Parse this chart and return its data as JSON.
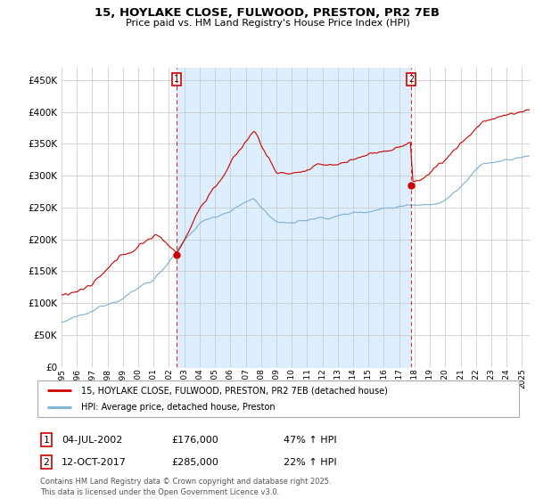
{
  "title_line1": "15, HOYLAKE CLOSE, FULWOOD, PRESTON, PR2 7EB",
  "title_line2": "Price paid vs. HM Land Registry's House Price Index (HPI)",
  "ylim": [
    0,
    470000
  ],
  "yticks": [
    0,
    50000,
    100000,
    150000,
    200000,
    250000,
    300000,
    350000,
    400000,
    450000
  ],
  "ytick_labels": [
    "£0",
    "£50K",
    "£100K",
    "£150K",
    "£200K",
    "£250K",
    "£300K",
    "£350K",
    "£400K",
    "£450K"
  ],
  "xlim_start": 1995.0,
  "xlim_end": 2025.5,
  "property_color": "#cc0000",
  "hpi_color": "#7ab0d4",
  "shade_color": "#ddeeff",
  "transaction1_date": 2002.5,
  "transaction1_price": 176000,
  "transaction2_date": 2017.78,
  "transaction2_price": 285000,
  "legend_property": "15, HOYLAKE CLOSE, FULWOOD, PRESTON, PR2 7EB (detached house)",
  "legend_hpi": "HPI: Average price, detached house, Preston",
  "label1_date": "04-JUL-2002",
  "label1_price": "£176,000",
  "label1_hpi": "47% ↑ HPI",
  "label2_date": "12-OCT-2017",
  "label2_price": "£285,000",
  "label2_hpi": "22% ↑ HPI",
  "footer": "Contains HM Land Registry data © Crown copyright and database right 2025.\nThis data is licensed under the Open Government Licence v3.0.",
  "background_color": "#ffffff",
  "grid_color": "#cccccc"
}
